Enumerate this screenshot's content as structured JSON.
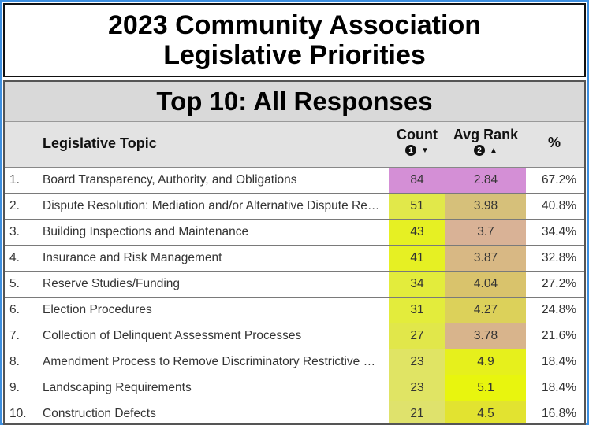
{
  "title": {
    "line1": "2023 Community Association",
    "line2": "Legislative Priorities"
  },
  "panel_title": "Top 10: All Responses",
  "columns": {
    "topic": "Legislative Topic",
    "count": "Count",
    "count_sort_badge": "1",
    "count_sort_arrow": "▼",
    "avg_rank": "Avg Rank",
    "avg_sort_badge": "2",
    "avg_sort_arrow": "▲",
    "percent": "%"
  },
  "rows": [
    {
      "idx": "1.",
      "topic": "Board Transparency, Authority, and Obligations",
      "count": "84",
      "avg": "2.84",
      "pct": "67.2%",
      "count_color": "#d48fd6",
      "avg_color": "#d48fd6"
    },
    {
      "idx": "2.",
      "topic": "Dispute Resolution: Mediation and/or Alternative Dispute Resolution",
      "count": "51",
      "avg": "3.98",
      "pct": "40.8%",
      "count_color": "#e1e84a",
      "avg_color": "#d6c07a"
    },
    {
      "idx": "3.",
      "topic": "Building Inspections and Maintenance",
      "count": "43",
      "avg": "3.7",
      "pct": "34.4%",
      "count_color": "#e6f023",
      "avg_color": "#d9b296"
    },
    {
      "idx": "4.",
      "topic": "Insurance and Risk Management",
      "count": "41",
      "avg": "3.87",
      "pct": "32.8%",
      "count_color": "#e6f023",
      "avg_color": "#d8b884"
    },
    {
      "idx": "5.",
      "topic": "Reserve Studies/Funding",
      "count": "34",
      "avg": "4.04",
      "pct": "27.2%",
      "count_color": "#e3ec3c",
      "avg_color": "#d9c36c"
    },
    {
      "idx": "6.",
      "topic": "Election Procedures",
      "count": "31",
      "avg": "4.27",
      "pct": "24.8%",
      "count_color": "#e3ec3c",
      "avg_color": "#dcd15a"
    },
    {
      "idx": "7.",
      "topic": "Collection of Delinquent Assessment Processes",
      "count": "27",
      "avg": "3.78",
      "pct": "21.6%",
      "count_color": "#e1e74a",
      "avg_color": "#d8b48c"
    },
    {
      "idx": "8.",
      "topic": "Amendment Process to Remove Discriminatory Restrictive Covenants",
      "count": "23",
      "avg": "4.9",
      "pct": "18.4%",
      "count_color": "#e0e464",
      "avg_color": "#e6f01c"
    },
    {
      "idx": "9.",
      "topic": "Landscaping Requirements",
      "count": "23",
      "avg": "5.1",
      "pct": "18.4%",
      "count_color": "#e0e464",
      "avg_color": "#e8f50e"
    },
    {
      "idx": "10.",
      "topic": "Construction Defects",
      "count": "21",
      "avg": "4.5",
      "pct": "16.8%",
      "count_color": "#dfe26c",
      "avg_color": "#e2e330"
    }
  ],
  "colors": {
    "background": "#3d8fe0",
    "header_bg": "#d9d9d9"
  }
}
